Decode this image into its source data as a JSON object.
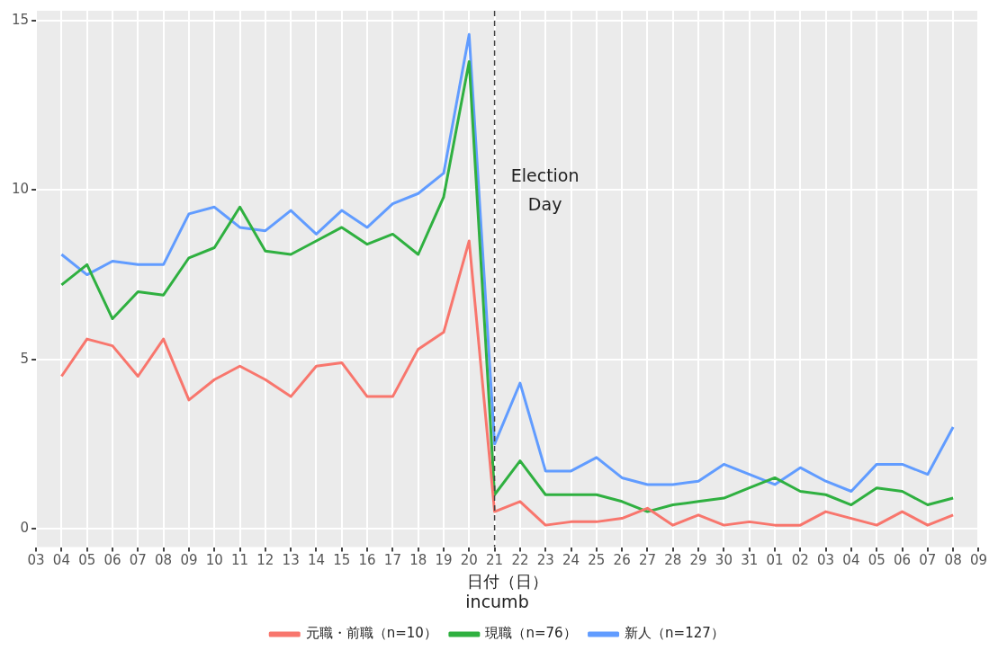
{
  "chart_data": {
    "type": "line",
    "xlabel": "日付（日）",
    "legend_title": "incumb",
    "legend": "bottom",
    "grid": true,
    "line_style": "solid",
    "marker": "none",
    "categories": [
      "03",
      "04",
      "05",
      "06",
      "07",
      "08",
      "09",
      "10",
      "11",
      "12",
      "13",
      "14",
      "15",
      "16",
      "17",
      "18",
      "19",
      "20",
      "21",
      "22",
      "23",
      "24",
      "25",
      "26",
      "27",
      "28",
      "29",
      "30",
      "31",
      "01",
      "02",
      "03",
      "04",
      "05",
      "06",
      "07",
      "08",
      "09"
    ],
    "series": [
      {
        "name": "元職・前職（n=10）",
        "color": "#f8766d",
        "values": [
          null,
          4.5,
          5.6,
          5.4,
          4.5,
          5.6,
          3.8,
          4.4,
          4.8,
          4.4,
          3.9,
          4.8,
          4.9,
          3.9,
          3.9,
          5.3,
          5.8,
          8.5,
          0.5,
          0.8,
          0.1,
          0.2,
          0.2,
          0.3,
          0.6,
          0.1,
          0.4,
          0.1,
          0.2,
          0.1,
          0.1,
          0.5,
          0.3,
          0.1,
          0.5,
          0.1,
          0.4,
          null
        ]
      },
      {
        "name": "現職（n=76）",
        "color": "#2fb040",
        "values": [
          null,
          7.2,
          7.8,
          6.2,
          7.0,
          6.9,
          8.0,
          8.3,
          9.5,
          8.2,
          8.1,
          8.5,
          8.9,
          8.4,
          8.7,
          8.1,
          9.8,
          13.8,
          1.0,
          2.0,
          1.0,
          1.0,
          1.0,
          0.8,
          0.5,
          0.7,
          0.8,
          0.9,
          1.2,
          1.5,
          1.1,
          1.0,
          0.7,
          1.2,
          1.1,
          0.7,
          0.9,
          null
        ]
      },
      {
        "name": "新人（n=127）",
        "color": "#619cff",
        "values": [
          null,
          8.1,
          7.5,
          7.9,
          7.8,
          7.8,
          9.3,
          9.5,
          8.9,
          8.8,
          9.4,
          8.7,
          9.4,
          8.9,
          9.6,
          9.9,
          10.5,
          14.6,
          2.5,
          4.3,
          1.7,
          1.7,
          2.1,
          1.5,
          1.3,
          1.3,
          1.4,
          1.9,
          1.6,
          1.3,
          1.8,
          1.4,
          1.1,
          1.9,
          1.9,
          1.6,
          3.0,
          null
        ]
      }
    ],
    "ylim": [
      -0.55,
      15.3
    ],
    "yticks": [
      0,
      5,
      10,
      15
    ],
    "ref_lines": [
      {
        "axis": "x",
        "value": "21",
        "label": "Election Day",
        "color": "#444444",
        "line_style": "dashed"
      }
    ]
  }
}
